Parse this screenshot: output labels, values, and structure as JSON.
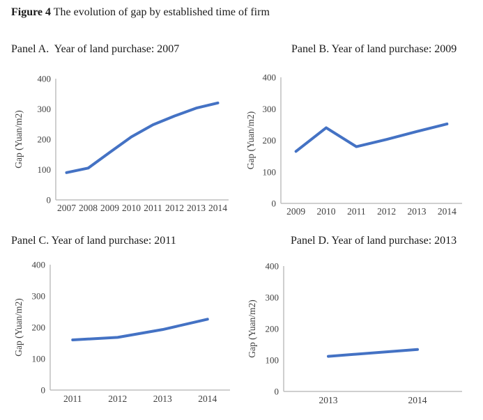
{
  "figure": {
    "title_bold": "Figure 4",
    "title_rest": " The evolution of gap by established time of firm"
  },
  "colors": {
    "line": "#4472C4",
    "axis": "#BFBFBF",
    "tick_text": "#3F3F3F",
    "title_text": "#1A1A1A"
  },
  "chart_data": [
    {
      "panel": "A",
      "type": "line",
      "title": "Panel A.  Year of land purchase: 2007",
      "ylabel": "Gap (Yuan/m2)",
      "ylim": [
        0,
        400
      ],
      "yticks": [
        0,
        100,
        200,
        300,
        400
      ],
      "categories": [
        "2007",
        "2008",
        "2009",
        "2010",
        "2011",
        "2012",
        "2013",
        "2014"
      ],
      "values": [
        90,
        105,
        157,
        208,
        248,
        277,
        303,
        320
      ],
      "line_color": "#4472C4",
      "grid": false,
      "legend": "none"
    },
    {
      "panel": "B",
      "type": "line",
      "title": "Panel B. Year of land purchase: 2009",
      "ylabel": "Gap (Yuan/m2)",
      "ylim": [
        0,
        400
      ],
      "yticks": [
        0,
        100,
        200,
        300,
        400
      ],
      "categories": [
        "2009",
        "2010",
        "2011",
        "2012",
        "2013",
        "2014"
      ],
      "values": [
        165,
        240,
        180,
        203,
        228,
        252
      ],
      "line_color": "#4472C4",
      "grid": false,
      "legend": "none"
    },
    {
      "panel": "C",
      "type": "line",
      "title": "Panel C. Year of land purchase: 2011",
      "ylabel": "Gap (Yuan/m2)",
      "ylim": [
        0,
        400
      ],
      "yticks": [
        0,
        100,
        200,
        300,
        400
      ],
      "categories": [
        "2011",
        "2012",
        "2013",
        "2014"
      ],
      "values": [
        160,
        168,
        193,
        226
      ],
      "line_color": "#4472C4",
      "grid": false,
      "legend": "none"
    },
    {
      "panel": "D",
      "type": "line",
      "title": "Panel D. Year of land purchase: 2013",
      "ylabel": "Gap (Yuan/m2)",
      "ylim": [
        0,
        400
      ],
      "yticks": [
        0,
        100,
        200,
        300,
        400
      ],
      "categories": [
        "2013",
        "2014"
      ],
      "values": [
        112,
        134
      ],
      "line_color": "#4472C4",
      "grid": false,
      "legend": "none"
    }
  ]
}
